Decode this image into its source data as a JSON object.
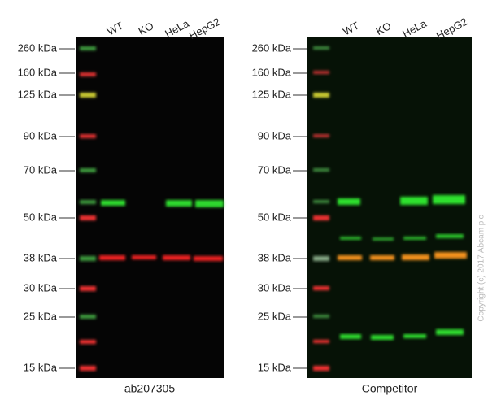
{
  "lanes": [
    "WT",
    "KO",
    "HeLa",
    "HepG2"
  ],
  "markers": [
    "260 kDa",
    "160 kDa",
    "125 kDa",
    "90 kDa",
    "70 kDa",
    "50 kDa",
    "38 kDa",
    "30 kDa",
    "25 kDa",
    "15 kDa"
  ],
  "panels": [
    {
      "caption": "ab207305"
    },
    {
      "caption": "Competitor"
    }
  ],
  "copyright": "Copyright (c) 2017 Abcam plc"
}
